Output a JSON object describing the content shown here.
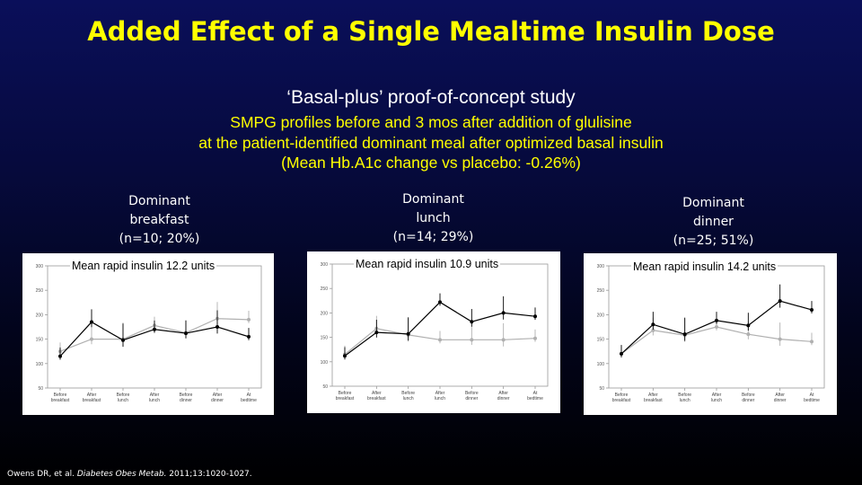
{
  "title": "Added Effect of a Single Mealtime Insulin Dose",
  "subtitle": "‘Basal-plus’ proof-of-concept study",
  "description_lines": [
    "SMPG profiles before and 3 mos after addition of glulisine",
    "at the patient-identified dominant meal after optimized basal insulin",
    "(Mean Hb.A1c change vs placebo: -0.26%)"
  ],
  "panels": [
    {
      "label_lines": [
        "Dominant",
        "breakfast",
        "(n=10; 20%)"
      ],
      "mean_text": "Mean rapid insulin 12.2 units"
    },
    {
      "label_lines": [
        "Dominant",
        "lunch",
        "(n=14; 29%)"
      ],
      "mean_text": "Mean rapid insulin 10.9 units"
    },
    {
      "label_lines": [
        "Dominant",
        "dinner",
        "(n=25; 51%)"
      ],
      "mean_text": "Mean rapid insulin  14.2 units"
    }
  ],
  "citation": {
    "authors": "Owens DR, et al. ",
    "journal": "Diabetes Obes Metab.",
    "ref": " 2011;13:1020-1027."
  },
  "colors": {
    "before": "#000000",
    "after": "#b0b0b0",
    "title": "#ffff00"
  },
  "chart_data": [
    {
      "type": "line",
      "categories": [
        "Before breakfast",
        "After breakfast",
        "Before lunch",
        "After lunch",
        "Before dinner",
        "After dinner",
        "At bedtime"
      ],
      "series": [
        {
          "values": [
            115,
            185,
            148,
            170,
            162,
            175,
            155
          ]
        },
        {
          "values": [
            125,
            150,
            150,
            178,
            163,
            192,
            190
          ]
        }
      ],
      "ylim": [
        50,
        300
      ],
      "yticks": [
        50,
        100,
        150,
        200,
        250,
        300
      ]
    },
    {
      "type": "line",
      "categories": [
        "Before breakfast",
        "After breakfast",
        "Before lunch",
        "After lunch",
        "Before dinner",
        "After dinner",
        "At bedtime"
      ],
      "series": [
        {
          "values": [
            112,
            160,
            157,
            222,
            182,
            200,
            193
          ]
        },
        {
          "values": [
            115,
            168,
            155,
            145,
            145,
            145,
            148
          ]
        }
      ],
      "ylim": [
        50,
        300
      ],
      "yticks": [
        50,
        100,
        150,
        200,
        250,
        300
      ]
    },
    {
      "type": "line",
      "categories": [
        "Before breakfast",
        "After breakfast",
        "Before lunch",
        "After lunch",
        "Before dinner",
        "After dinner",
        "At bedtime"
      ],
      "series": [
        {
          "values": [
            120,
            180,
            160,
            188,
            178,
            228,
            210
          ]
        },
        {
          "values": [
            120,
            168,
            158,
            175,
            160,
            150,
            145
          ]
        }
      ],
      "ylim": [
        50,
        300
      ],
      "yticks": [
        50,
        100,
        150,
        200,
        250,
        300
      ]
    }
  ]
}
